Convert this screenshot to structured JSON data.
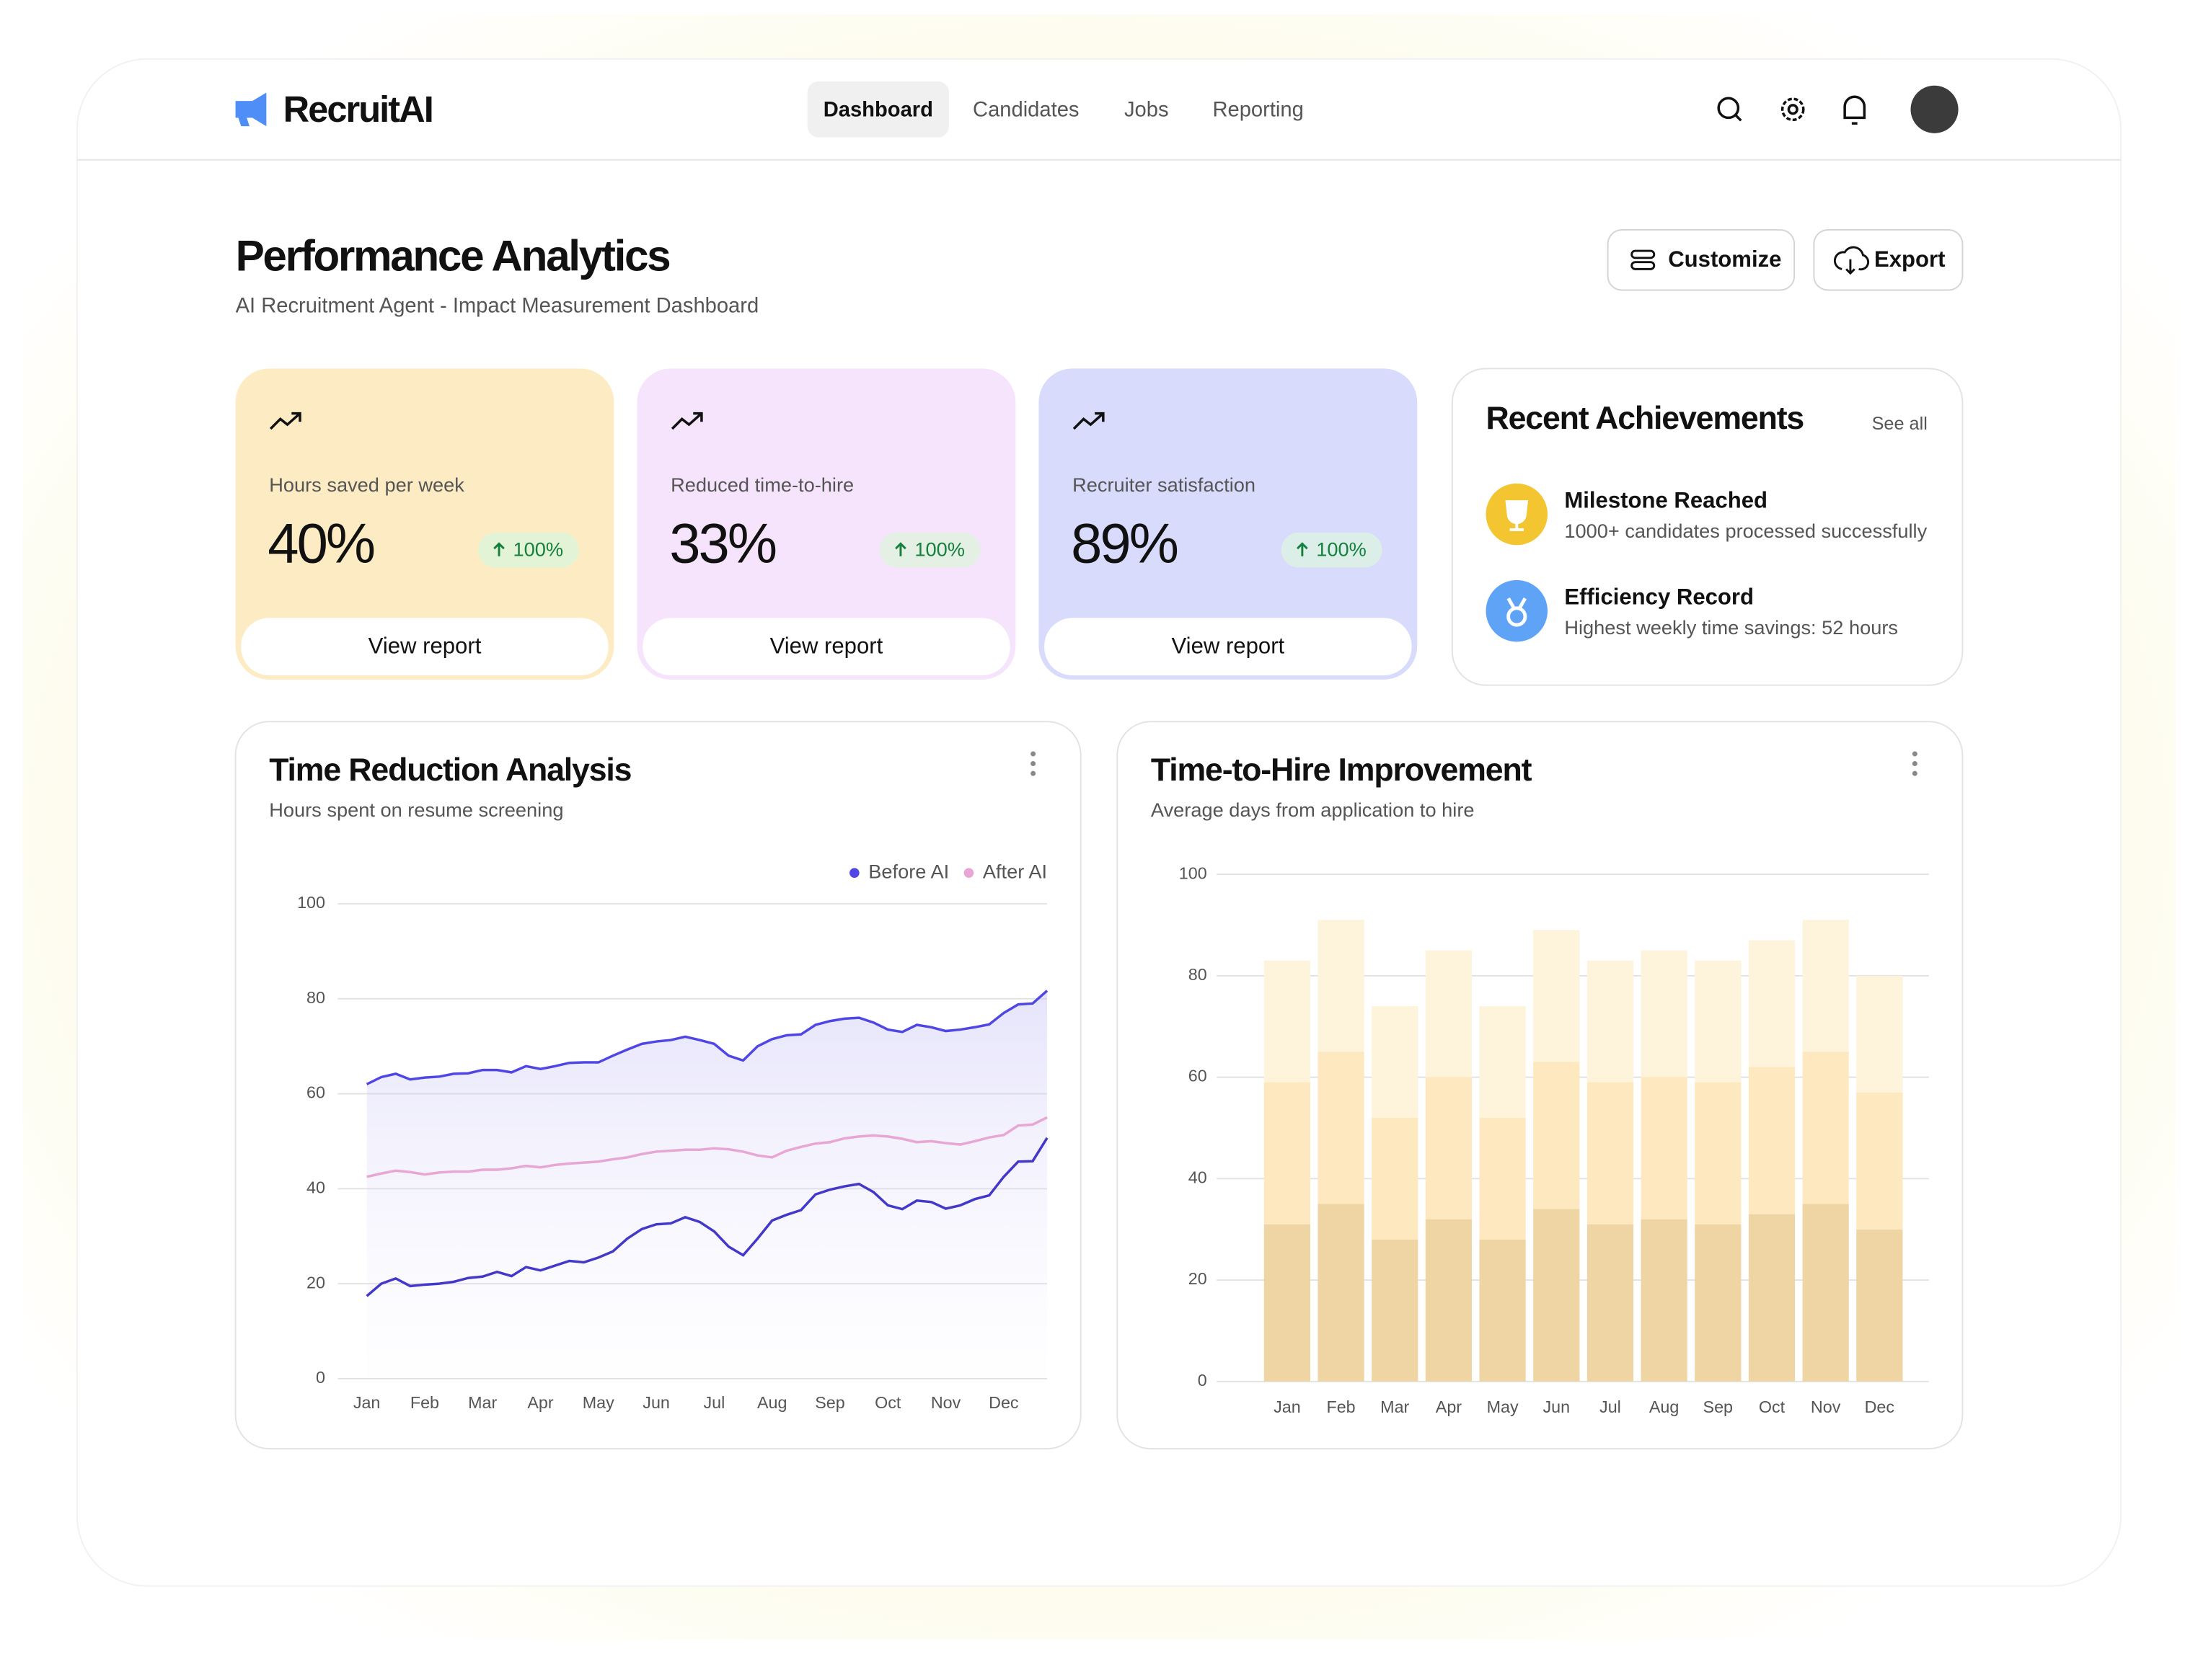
{
  "brand": "RecruitAI",
  "nav": [
    "Dashboard",
    "Candidates",
    "Jobs",
    "Reporting"
  ],
  "header": {
    "title": "Performance Analytics",
    "subtitle": "AI Recruitment Agent - Impact Measurement Dashboard",
    "actions": [
      "Customize",
      "Export"
    ]
  },
  "metrics": [
    {
      "label": "Hours saved per week",
      "value": "40%",
      "change": "100%",
      "action": "View report"
    },
    {
      "label": "Reduced time-to-hire",
      "value": "33%",
      "change": "100%",
      "action": "View report"
    },
    {
      "label": "Recruiter satisfaction",
      "value": "89%",
      "change": "100%",
      "action": "View report"
    }
  ],
  "achievements": {
    "title": "Recent Achievements",
    "link": "See all",
    "items": [
      {
        "title": "Milestone Reached",
        "text": "1000+ candidates processed successfully"
      },
      {
        "title": "Efficiency Record",
        "text": "Highest weekly time savings: 52 hours"
      }
    ]
  },
  "chart_data": [
    {
      "type": "line",
      "title": "Time Reduction Analysis",
      "subtitle": "Hours spent on resume screening",
      "x": [
        0,
        0.25,
        0.5,
        0.75,
        1,
        1.25,
        1.5,
        1.75,
        2,
        2.25,
        2.5,
        2.75,
        3,
        3.25,
        3.5,
        3.75,
        4,
        4.25,
        4.5,
        4.75,
        5,
        5.25,
        5.5,
        5.75,
        6,
        6.25,
        6.5,
        6.75,
        7,
        7.25,
        7.5,
        7.75,
        8,
        8.25,
        8.5,
        8.75,
        9,
        9.25,
        9.5,
        9.75,
        10,
        10.25,
        10.5,
        10.75,
        11,
        11.25,
        11.5,
        11.75
      ],
      "xlim": [
        -0.5,
        11.75
      ],
      "xticks": [
        {
          "value": 0,
          "label": "Jan"
        },
        {
          "value": 1,
          "label": "Feb"
        },
        {
          "value": 2,
          "label": "Mar"
        },
        {
          "value": 3,
          "label": "Apr"
        },
        {
          "value": 4,
          "label": "May"
        },
        {
          "value": 5,
          "label": "Jun"
        },
        {
          "value": 6,
          "label": "Jul"
        },
        {
          "value": 7,
          "label": "Aug"
        },
        {
          "value": 8,
          "label": "Sep"
        },
        {
          "value": 9,
          "label": "Oct"
        },
        {
          "value": 10,
          "label": "Nov"
        },
        {
          "value": 11,
          "label": "Dec"
        }
      ],
      "ylim": [
        0,
        100
      ],
      "yticks": [
        0,
        20,
        40,
        60,
        80,
        100
      ],
      "grid": true,
      "legend": "top-right",
      "series": [
        {
          "name": "Before AI",
          "color": "#4f46e5",
          "values": [
            62,
            63.5,
            64.2,
            63,
            63.4,
            63.6,
            64.2,
            64.3,
            65,
            65,
            64.5,
            65.8,
            65.2,
            65.8,
            66.5,
            66.6,
            66.6,
            68,
            69.3,
            70.5,
            71,
            71.3,
            72,
            71.3,
            70.5,
            68,
            67,
            70,
            71.5,
            72.3,
            72.5,
            74.5,
            75.3,
            75.8,
            76,
            75,
            73.5,
            73,
            74.5,
            74,
            73.2,
            73.5,
            74,
            74.6,
            77,
            78.8,
            79,
            81.7
          ]
        },
        {
          "name": "After AI",
          "color": "#e8a6d4",
          "values": [
            42.5,
            43.2,
            43.8,
            43.5,
            43,
            43.4,
            43.6,
            43.6,
            44,
            44,
            44.3,
            44.8,
            44.5,
            45,
            45.3,
            45.5,
            45.7,
            46.2,
            46.6,
            47.3,
            47.8,
            48,
            48.2,
            48.2,
            48.5,
            48.3,
            47.8,
            47,
            46.6,
            48,
            48.8,
            49.5,
            49.8,
            50.6,
            51,
            51.2,
            51,
            50.5,
            49.8,
            50,
            49.6,
            49.3,
            50,
            50.8,
            51.3,
            53.3,
            53.5,
            55
          ]
        },
        {
          "color": "#4338ca",
          "values": [
            17.4,
            20,
            21.1,
            19.5,
            19.8,
            20,
            20.4,
            21.2,
            21.5,
            22.5,
            21.6,
            23.5,
            22.8,
            23.8,
            24.8,
            24.5,
            25.5,
            26.8,
            29.5,
            31.5,
            32.5,
            32.7,
            34,
            33,
            31,
            27.8,
            26,
            29.5,
            33.3,
            34.5,
            35.5,
            38.8,
            39.8,
            40.5,
            41,
            39.3,
            36.5,
            35.7,
            37.5,
            37.2,
            35.8,
            36.5,
            37.8,
            38.6,
            42.5,
            45.7,
            45.8,
            50.7
          ]
        }
      ]
    },
    {
      "type": "bar",
      "stacked": true,
      "title": "Time-to-Hire Improvement",
      "subtitle": "Average days from application to hire",
      "categories": [
        "Jan",
        "Feb",
        "Mar",
        "Apr",
        "May",
        "Jun",
        "Jul",
        "Aug",
        "Sep",
        "Oct",
        "Nov",
        "Dec"
      ],
      "ylim": [
        0,
        100
      ],
      "yticks": [
        0,
        20,
        40,
        60,
        80,
        100
      ],
      "grid": true,
      "series": [
        {
          "color": "#efd5a3",
          "values": [
            31,
            35,
            28,
            32,
            28,
            34,
            31,
            32,
            31,
            33,
            35,
            30
          ]
        },
        {
          "color": "#fde8bf",
          "values": [
            28,
            30,
            24,
            28,
            24,
            29,
            28,
            28,
            28,
            29,
            30,
            27
          ]
        },
        {
          "color": "#fef3db",
          "values": [
            24,
            26,
            22,
            25,
            22,
            26,
            24,
            25,
            24,
            25,
            26,
            23
          ]
        }
      ]
    }
  ]
}
